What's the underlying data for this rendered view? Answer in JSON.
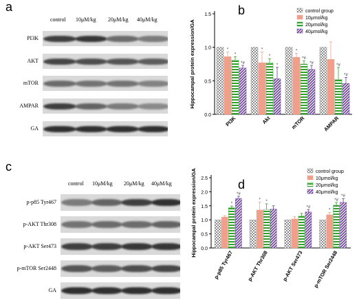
{
  "panels": {
    "a": {
      "letter": "a",
      "columns": [
        "control",
        "10μM/kg",
        "20μM/kg",
        "40μM/kg"
      ],
      "rows": [
        "PI3K",
        "AKT",
        "mTOR",
        "AMPAR",
        "GA"
      ]
    },
    "c": {
      "letter": "c",
      "columns": [
        "control",
        "10μM/kg",
        "20μM/kg",
        "40μM/kg"
      ],
      "rows": [
        "p-p85 Tyr467",
        "p-AKT Thr308",
        "p-AKT Ser473",
        "p-mTOR Ser2448",
        "GA"
      ]
    }
  },
  "chart_data": [
    {
      "letter": "b",
      "type": "bar",
      "title": "",
      "xlabel": "",
      "ylabel": "Hippocampal protein expression/GA",
      "categories": [
        "PI3K",
        "Akt",
        "mTOR",
        "AMPAR"
      ],
      "ylim": [
        0,
        1.5
      ],
      "yticks": [
        "0.0",
        "0.5",
        "1.0",
        "1.5"
      ],
      "grid": false,
      "legend_position": "top-right",
      "series": [
        {
          "name": "control group",
          "values": [
            1.0,
            1.0,
            1.0,
            1.0
          ],
          "errors": [
            0,
            0,
            0,
            0
          ],
          "marks": [
            "",
            "",
            "",
            ""
          ],
          "color": "#8c8c8c",
          "pattern": "check"
        },
        {
          "name": "10μmol/kg",
          "values": [
            0.86,
            0.77,
            0.85,
            0.82
          ],
          "errors": [
            0.07,
            0.16,
            0.06,
            0.26
          ],
          "marks": [
            "*",
            "*",
            "*",
            ""
          ],
          "color": "#f0a08a",
          "pattern": "solid"
        },
        {
          "name": "20μmol/kg",
          "values": [
            0.81,
            0.77,
            0.75,
            0.52
          ],
          "errors": [
            0.05,
            0.06,
            0.05,
            0.18
          ],
          "marks": [
            "*",
            "*",
            "*#",
            "*#"
          ],
          "color": "#33a02c",
          "pattern": "hstripe"
        },
        {
          "name": "40μmol/kg",
          "values": [
            0.69,
            0.53,
            0.67,
            0.46
          ],
          "errors": [
            0.04,
            0.17,
            0.06,
            0.09
          ],
          "marks": [
            "*#",
            "*",
            "*#",
            "*#"
          ],
          "color": "#6a3d9a",
          "pattern": "dstripe"
        }
      ]
    },
    {
      "letter": "d",
      "type": "bar",
      "title": "",
      "xlabel": "",
      "ylabel": "Hippocampal protein expression/GA",
      "categories": [
        "p-p85 Tyr467",
        "p-AKT Thr308",
        "p-AKT Ser473",
        "p-mTOR Ser2448"
      ],
      "ylim": [
        0,
        2.5
      ],
      "yticks": [
        "0.0",
        "0.5",
        "1.0",
        "1.5",
        "2.0",
        "2.5"
      ],
      "grid": false,
      "legend_position": "top-right",
      "series": [
        {
          "name": "control group",
          "values": [
            1.0,
            1.0,
            1.0,
            1.0
          ],
          "errors": [
            0,
            0,
            0,
            0
          ],
          "marks": [
            "",
            "",
            "",
            ""
          ],
          "color": "#8c8c8c",
          "pattern": "check"
        },
        {
          "name": "10μmol/kg",
          "values": [
            1.1,
            1.35,
            1.03,
            1.18
          ],
          "errors": [
            0.05,
            0.28,
            0.09,
            0.08
          ],
          "marks": [
            "",
            "*",
            "",
            "*"
          ],
          "color": "#f0a08a",
          "pattern": "solid"
        },
        {
          "name": "20μmol/kg",
          "values": [
            1.43,
            1.37,
            1.13,
            1.52
          ],
          "errors": [
            0.06,
            0.2,
            0.1,
            0.1
          ],
          "marks": [
            "*",
            "*",
            "",
            "*#"
          ],
          "color": "#33a02c",
          "pattern": "hstripe"
        },
        {
          "name": "40μmol/kg",
          "values": [
            1.76,
            1.38,
            1.28,
            1.62
          ],
          "errors": [
            0.08,
            0.12,
            0.08,
            0.14
          ],
          "marks": [
            "*#",
            "",
            "*#",
            "*#"
          ],
          "color": "#6a3d9a",
          "pattern": "dstripe"
        }
      ]
    }
  ]
}
